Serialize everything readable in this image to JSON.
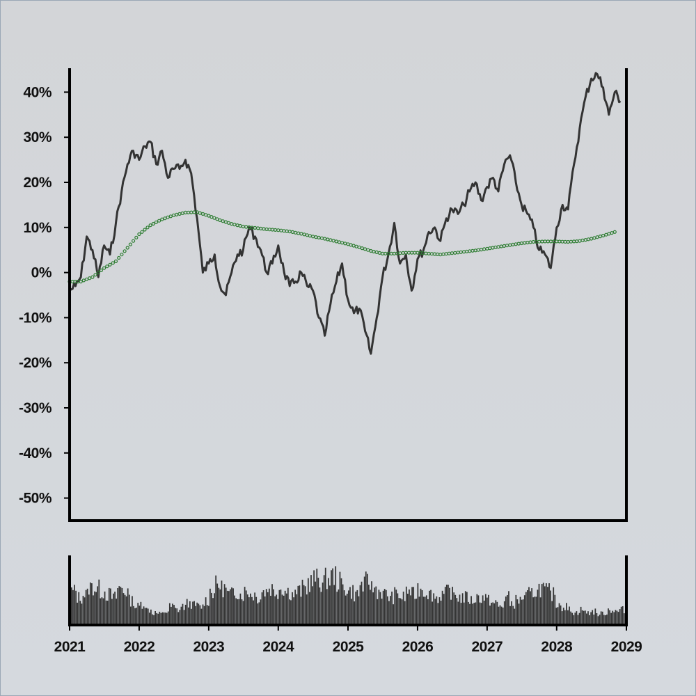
{
  "chart_data": {
    "type": "line",
    "title": "",
    "xlabel": "",
    "ylabel": "",
    "x_range": [
      "2021-01-01",
      "2029-01-01"
    ],
    "x_tick_labels": [
      "2021",
      "2022",
      "2023",
      "2024",
      "2025",
      "2026",
      "2027",
      "2028",
      "2029"
    ],
    "y_tick_labels": [
      "40%",
      "30%",
      "20%",
      "10%",
      "0%",
      "-10%",
      "-20%",
      "-30%",
      "-40%",
      "-50%"
    ],
    "ylim": [
      -55,
      45
    ],
    "y_unit": "%",
    "grid": false,
    "legend": "none",
    "series": [
      {
        "style": "solid",
        "color": "#333333",
        "points": [
          [
            "2021-01-01",
            -4
          ],
          [
            "2021-02-01",
            -3
          ],
          [
            "2021-03-01",
            -1
          ],
          [
            "2021-04-01",
            8
          ],
          [
            "2021-05-01",
            5
          ],
          [
            "2021-06-01",
            -1
          ],
          [
            "2021-07-01",
            6
          ],
          [
            "2021-08-01",
            4
          ],
          [
            "2021-09-01",
            11
          ],
          [
            "2021-10-01",
            18
          ],
          [
            "2021-11-01",
            24
          ],
          [
            "2021-12-01",
            27
          ],
          [
            "2022-01-01",
            25
          ],
          [
            "2022-02-01",
            28
          ],
          [
            "2022-03-01",
            29
          ],
          [
            "2022-04-01",
            24
          ],
          [
            "2022-05-01",
            27
          ],
          [
            "2022-06-01",
            21
          ],
          [
            "2022-07-01",
            23
          ],
          [
            "2022-08-01",
            23
          ],
          [
            "2022-09-01",
            25
          ],
          [
            "2022-10-01",
            22
          ],
          [
            "2022-11-01",
            12
          ],
          [
            "2022-12-01",
            0
          ],
          [
            "2023-01-01",
            2
          ],
          [
            "2023-02-01",
            4
          ],
          [
            "2023-03-01",
            -3
          ],
          [
            "2023-04-01",
            -5
          ],
          [
            "2023-05-01",
            0
          ],
          [
            "2023-06-01",
            4
          ],
          [
            "2023-07-01",
            5
          ],
          [
            "2023-08-01",
            10
          ],
          [
            "2023-09-01",
            8
          ],
          [
            "2023-10-01",
            5
          ],
          [
            "2023-11-01",
            0
          ],
          [
            "2023-12-01",
            2
          ],
          [
            "2024-01-01",
            6
          ],
          [
            "2024-02-01",
            0
          ],
          [
            "2024-03-01",
            -3
          ],
          [
            "2024-04-01",
            -2
          ],
          [
            "2024-05-01",
            0
          ],
          [
            "2024-06-01",
            -3
          ],
          [
            "2024-07-01",
            -4
          ],
          [
            "2024-08-01",
            -10
          ],
          [
            "2024-09-01",
            -14
          ],
          [
            "2024-10-01",
            -7
          ],
          [
            "2024-11-01",
            -2
          ],
          [
            "2024-12-01",
            2
          ],
          [
            "2025-01-01",
            -6
          ],
          [
            "2025-02-01",
            -9
          ],
          [
            "2025-03-01",
            -8
          ],
          [
            "2025-04-01",
            -13
          ],
          [
            "2025-05-01",
            -18
          ],
          [
            "2025-06-01",
            -10
          ],
          [
            "2025-07-01",
            -1
          ],
          [
            "2025-08-01",
            4
          ],
          [
            "2025-09-01",
            11
          ],
          [
            "2025-10-01",
            2
          ],
          [
            "2025-11-01",
            4
          ],
          [
            "2025-12-01",
            -4
          ],
          [
            "2026-01-01",
            3
          ],
          [
            "2026-02-01",
            5
          ],
          [
            "2026-03-01",
            9
          ],
          [
            "2026-04-01",
            10
          ],
          [
            "2026-05-01",
            7
          ],
          [
            "2026-06-01",
            12
          ],
          [
            "2026-07-01",
            14
          ],
          [
            "2026-08-01",
            13
          ],
          [
            "2026-09-01",
            15
          ],
          [
            "2026-10-01",
            18
          ],
          [
            "2026-11-01",
            20
          ],
          [
            "2026-12-01",
            16
          ],
          [
            "2027-01-01",
            19
          ],
          [
            "2027-02-01",
            21
          ],
          [
            "2027-03-01",
            18
          ],
          [
            "2027-04-01",
            24
          ],
          [
            "2027-05-01",
            26
          ],
          [
            "2027-06-01",
            20
          ],
          [
            "2027-07-01",
            15
          ],
          [
            "2027-08-01",
            13
          ],
          [
            "2027-09-01",
            10
          ],
          [
            "2027-10-01",
            5
          ],
          [
            "2027-11-01",
            4
          ],
          [
            "2027-12-01",
            1
          ],
          [
            "2028-01-01",
            10
          ],
          [
            "2028-02-01",
            15
          ],
          [
            "2028-03-01",
            14
          ],
          [
            "2028-04-01",
            24
          ],
          [
            "2028-05-01",
            32
          ],
          [
            "2028-06-01",
            39
          ],
          [
            "2028-07-01",
            43
          ],
          [
            "2028-08-01",
            44
          ],
          [
            "2028-09-01",
            41
          ],
          [
            "2028-10-01",
            35
          ],
          [
            "2028-11-01",
            40
          ],
          [
            "2028-12-01",
            38
          ]
        ]
      },
      {
        "style": "dotted",
        "color": "#2e7d32",
        "points": [
          [
            "2021-01-01",
            -2
          ],
          [
            "2021-03-01",
            -2
          ],
          [
            "2021-05-01",
            -1
          ],
          [
            "2021-07-01",
            1
          ],
          [
            "2021-09-01",
            2.5
          ],
          [
            "2021-11-01",
            5.5
          ],
          [
            "2022-01-01",
            8.5
          ],
          [
            "2022-03-01",
            10.5
          ],
          [
            "2022-05-01",
            11.8
          ],
          [
            "2022-07-01",
            12.7
          ],
          [
            "2022-09-01",
            13.3
          ],
          [
            "2022-11-01",
            13.4
          ],
          [
            "2023-01-01",
            12.6
          ],
          [
            "2023-03-01",
            11.6
          ],
          [
            "2023-05-01",
            10.8
          ],
          [
            "2023-07-01",
            10.2
          ],
          [
            "2023-09-01",
            9.9
          ],
          [
            "2023-11-01",
            9.6
          ],
          [
            "2024-01-01",
            9.4
          ],
          [
            "2024-03-01",
            9.1
          ],
          [
            "2024-05-01",
            8.6
          ],
          [
            "2024-07-01",
            8.0
          ],
          [
            "2024-09-01",
            7.5
          ],
          [
            "2024-11-01",
            6.9
          ],
          [
            "2025-01-01",
            6.3
          ],
          [
            "2025-03-01",
            5.6
          ],
          [
            "2025-05-01",
            4.8
          ],
          [
            "2025-07-01",
            4.2
          ],
          [
            "2025-09-01",
            4.2
          ],
          [
            "2025-11-01",
            4.4
          ],
          [
            "2026-01-01",
            4.4
          ],
          [
            "2026-03-01",
            4.2
          ],
          [
            "2026-05-01",
            4.0
          ],
          [
            "2026-07-01",
            4.3
          ],
          [
            "2026-09-01",
            4.6
          ],
          [
            "2026-11-01",
            4.9
          ],
          [
            "2027-01-01",
            5.3
          ],
          [
            "2027-03-01",
            5.7
          ],
          [
            "2027-05-01",
            6.1
          ],
          [
            "2027-07-01",
            6.5
          ],
          [
            "2027-09-01",
            6.8
          ],
          [
            "2027-11-01",
            6.9
          ],
          [
            "2028-01-01",
            6.9
          ],
          [
            "2028-03-01",
            6.8
          ],
          [
            "2028-05-01",
            7.0
          ],
          [
            "2028-07-01",
            7.5
          ],
          [
            "2028-09-01",
            8.2
          ],
          [
            "2028-11-01",
            9.0
          ]
        ]
      }
    ],
    "volume": {
      "color": "#333333",
      "monthly_levels": [
        0.55,
        0.45,
        0.5,
        0.62,
        0.6,
        0.55,
        0.5,
        0.45,
        0.6,
        0.55,
        0.4,
        0.3,
        0.35,
        0.25,
        0.2,
        0.18,
        0.22,
        0.3,
        0.25,
        0.3,
        0.35,
        0.32,
        0.3,
        0.4,
        0.55,
        0.65,
        0.6,
        0.5,
        0.55,
        0.5,
        0.55,
        0.5,
        0.45,
        0.55,
        0.6,
        0.55,
        0.6,
        0.55,
        0.5,
        0.55,
        0.6,
        0.7,
        0.75,
        0.7,
        0.75,
        0.8,
        0.7,
        0.6,
        0.55,
        0.5,
        0.65,
        0.7,
        0.6,
        0.55,
        0.5,
        0.45,
        0.5,
        0.45,
        0.55,
        0.5,
        0.6,
        0.55,
        0.5,
        0.45,
        0.5,
        0.55,
        0.5,
        0.45,
        0.45,
        0.4,
        0.45,
        0.45,
        0.4,
        0.35,
        0.3,
        0.45,
        0.35,
        0.4,
        0.45,
        0.5,
        0.55,
        0.6,
        0.55,
        0.5,
        0.35,
        0.3,
        0.25,
        0.2,
        0.25,
        0.2,
        0.22,
        0.18,
        0.2,
        0.25,
        0.22,
        0.25
      ]
    }
  }
}
